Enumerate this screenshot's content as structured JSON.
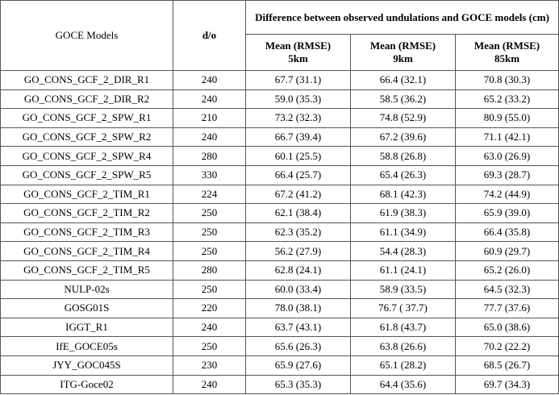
{
  "table": {
    "header": {
      "model": "GOCE Models",
      "degree": "d/o",
      "group": "Difference between observed undulations and GOCE models (cm)",
      "columns": [
        {
          "label": "Mean (RMSE)",
          "distance": "5km"
        },
        {
          "label": "Mean (RMSE)",
          "distance": "9km"
        },
        {
          "label": "Mean (RMSE)",
          "distance": "85km"
        }
      ]
    },
    "rows": [
      [
        "GO_CONS_GCF_2_DIR_R1",
        "240",
        "67.7 (31.1)",
        "66.4 (32.1)",
        "70.8 (30.3)"
      ],
      [
        "GO_CONS_GCF_2_DIR_R2",
        "240",
        "59.0 (35.3)",
        "58.5 (36.2)",
        "65.2 (33.2)"
      ],
      [
        "GO_CONS_GCF_2_SPW_R1",
        "210",
        "73.2 (32.3)",
        "74.8 (52.9)",
        "80.9 (55.0)"
      ],
      [
        "GO_CONS_GCF_2_SPW_R2",
        "240",
        "66.7 (39.4)",
        "67.2 (39.6)",
        "71.1 (42.1)"
      ],
      [
        "GO_CONS_GCF_2_SPW_R4",
        "280",
        "60.1 (25.5)",
        "58.8 (26.8)",
        "63.0 (26.9)"
      ],
      [
        "GO_CONS_GCF_2_SPW_R5",
        "330",
        "66.4 (25.7)",
        "65.4 (26.3)",
        "69.3 (28.7)"
      ],
      [
        "GO_CONS_GCF_2_TIM_R1",
        "224",
        "67.2 (41.2)",
        "68.1 (42.3)",
        "74.2 (44.9)"
      ],
      [
        "GO_CONS_GCF_2_TIM_R2",
        "250",
        "62.1 (38.4)",
        "61.9 (38.3)",
        "65.9 (39.0)"
      ],
      [
        "GO_CONS_GCF_2_TIM_R3",
        "250",
        "62.3 (35.2)",
        "61.1 (34.9)",
        "66.4 (35.8)"
      ],
      [
        "GO_CONS_GCF_2_TIM_R4",
        "250",
        "56.2 (27.9)",
        "54.4 (28.3)",
        "60.9 (29.7)"
      ],
      [
        "GO_CONS_GCF_2_TIM_R5",
        "280",
        "62.8 (24.1)",
        "61.1 (24.1)",
        "65.2 (26.0)"
      ],
      [
        "NULP-02s",
        "250",
        "60.0 (33.4)",
        "58.9 (33.5)",
        "64.5 (32.3)"
      ],
      [
        "GOSG01S",
        "220",
        "78.0 (38.1)",
        "76.7 ( 37.7)",
        "77.7 (37.6)"
      ],
      [
        "IGGT_R1",
        "240",
        "63.7 (43.1)",
        "61.8 (43.7)",
        "65.0 (38.6)"
      ],
      [
        "IfE_GOCE05s",
        "250",
        "65.6 (26.3)",
        "63.8 (26.6)",
        "70.2 (22.2)"
      ],
      [
        "JYY_GOC045S",
        "230",
        "65.9 (27.6)",
        "65.1 (28.2)",
        "68.5 (26.7)"
      ],
      [
        "ITG-Goce02",
        "240",
        "65.3 (35.3)",
        "64.4 (35.6)",
        "69.7 (34.3)"
      ]
    ]
  }
}
